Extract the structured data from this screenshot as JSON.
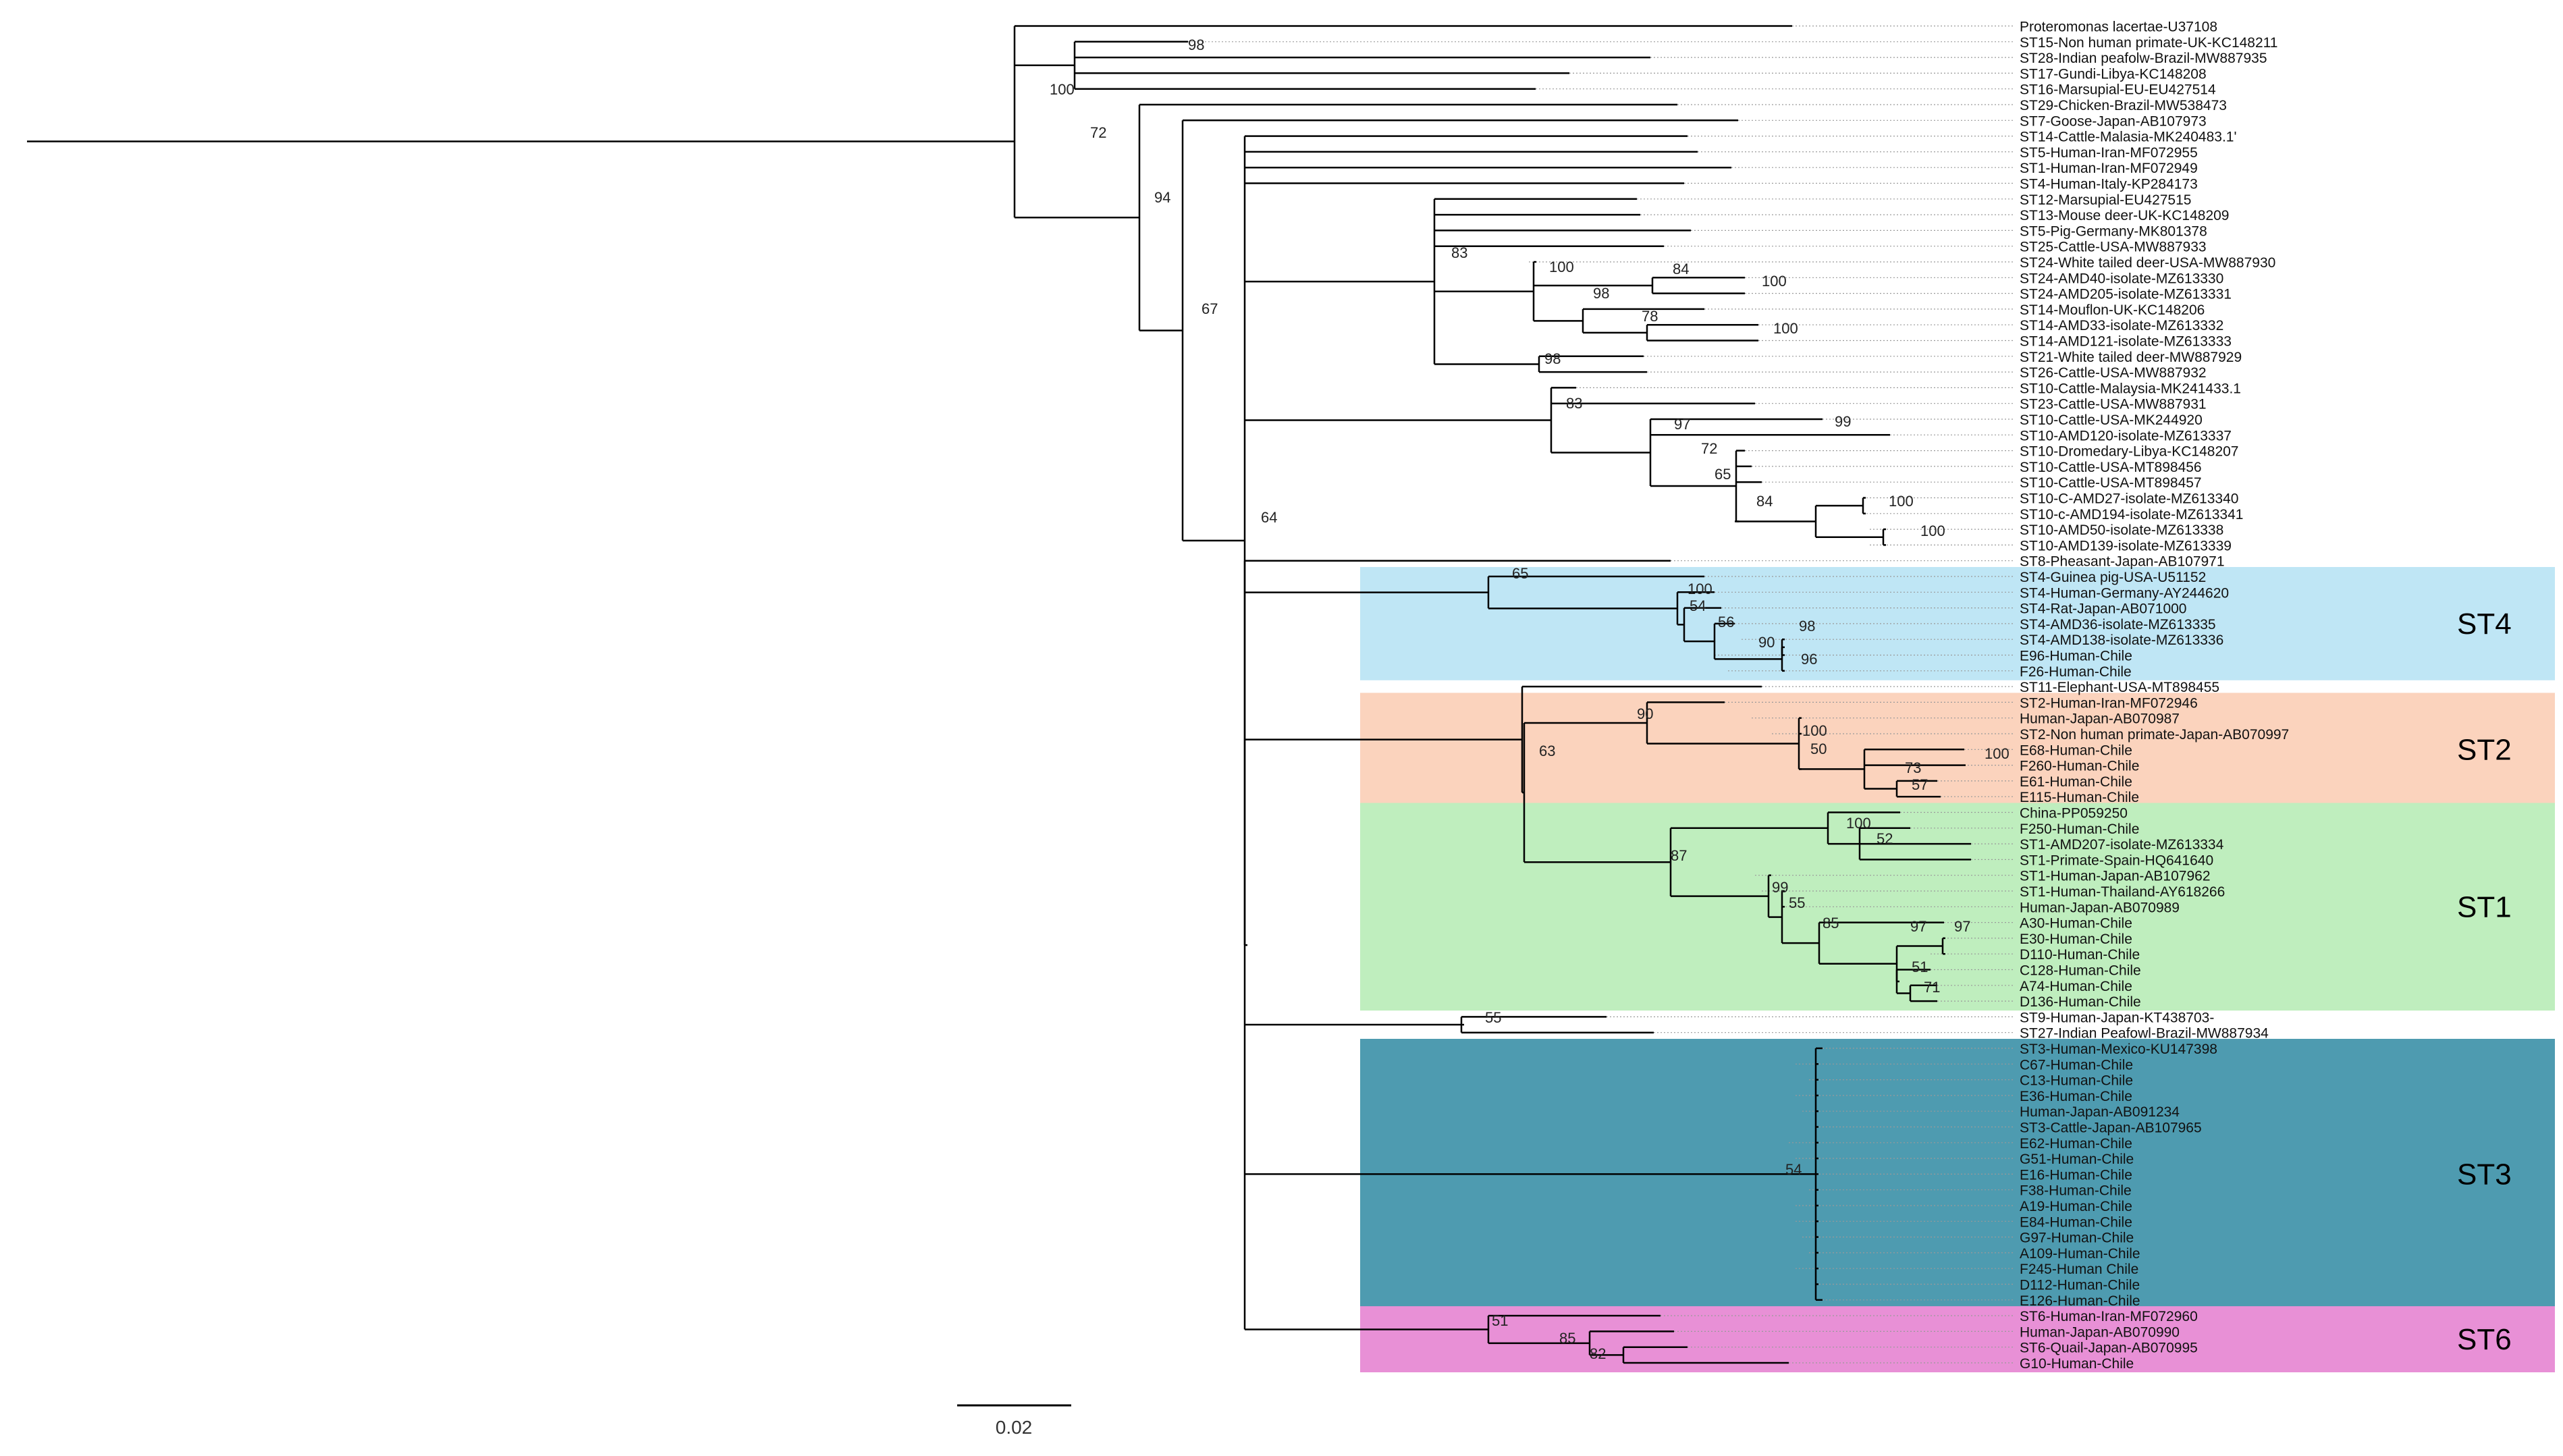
{
  "figure": {
    "scale_bar_label": "0.02",
    "branch_color": "#000000",
    "guide_color": "#9a9a9a"
  },
  "taxa": [
    "Proteromonas lacertae-U37108",
    "ST15-Non human primate-UK-KC148211",
    "ST28-Indian peafolw-Brazil-MW887935",
    "ST17-Gundi-Libya-KC148208",
    "ST16-Marsupial-EU-EU427514",
    "ST29-Chicken-Brazil-MW538473",
    "ST7-Goose-Japan-AB107973",
    "ST14-Cattle-Malasia-MK240483.1'",
    "ST5-Human-Iran-MF072955",
    "ST1-Human-Iran-MF072949",
    "ST4-Human-Italy-KP284173",
    "ST12-Marsupial-EU427515",
    "ST13-Mouse deer-UK-KC148209",
    "ST5-Pig-Germany-MK801378",
    "ST25-Cattle-USA-MW887933",
    "ST24-White tailed deer-USA-MW887930",
    "ST24-AMD40-isolate-MZ613330",
    "ST24-AMD205-isolate-MZ613331",
    "ST14-Mouflon-UK-KC148206",
    "ST14-AMD33-isolate-MZ613332",
    "ST14-AMD121-isolate-MZ613333",
    "ST21-White tailed deer-MW887929",
    "ST26-Cattle-USA-MW887932",
    "ST10-Cattle-Malaysia-MK241433.1",
    "ST23-Cattle-USA-MW887931",
    "ST10-Cattle-USA-MK244920",
    "ST10-AMD120-isolate-MZ613337",
    "ST10-Dromedary-Libya-KC148207",
    "ST10-Cattle-USA-MT898456",
    "ST10-Cattle-USA-MT898457",
    "ST10-C-AMD27-isolate-MZ613340",
    "ST10-c-AMD194-isolate-MZ613341",
    "ST10-AMD50-isolate-MZ613338",
    "ST10-AMD139-isolate-MZ613339",
    "ST8-Pheasant-Japan-AB107971",
    "ST4-Guinea pig-USA-U51152",
    "ST4-Human-Germany-AY244620",
    "ST4-Rat-Japan-AB071000",
    "ST4-AMD36-isolate-MZ613335",
    "ST4-AMD138-isolate-MZ613336",
    "E96-Human-Chile",
    "F26-Human-Chile",
    "ST11-Elephant-USA-MT898455",
    "ST2-Human-Iran-MF072946",
    "Human-Japan-AB070987",
    "ST2-Non human primate-Japan-AB070997",
    "E68-Human-Chile",
    "F260-Human-Chile",
    "E61-Human-Chile",
    "E115-Human-Chile",
    "China-PP059250",
    "F250-Human-Chile",
    "ST1-AMD207-isolate-MZ613334",
    "ST1-Primate-Spain-HQ641640",
    "ST1-Human-Japan-AB107962",
    "ST1-Human-Thailand-AY618266",
    "Human-Japan-AB070989",
    "A30-Human-Chile",
    "E30-Human-Chile",
    "D110-Human-Chile",
    "C128-Human-Chile",
    "A74-Human-Chile",
    "D136-Human-Chile",
    "ST9-Human-Japan-KT438703-",
    "ST27-Indian Peafowl-Brazil-MW887934",
    "ST3-Human-Mexico-KU147398",
    "C67-Human-Chile",
    "C13-Human-Chile",
    "E36-Human-Chile",
    "Human-Japan-AB091234",
    "ST3-Cattle-Japan-AB107965",
    "E62-Human-Chile",
    "G51-Human-Chile",
    "E16-Human-Chile",
    "F38-Human-Chile",
    "A19-Human-Chile",
    "E84-Human-Chile",
    "G97-Human-Chile",
    "A109-Human-Chile",
    "F245-Human Chile",
    "D112-Human-Chile",
    "E126-Human-Chile",
    "ST6-Human-Iran-MF072960",
    "Human-Japan-AB070990",
    "ST6-Quail-Japan-AB070995",
    "G10-Human-Chile"
  ],
  "clades": [
    {
      "name": "ST4",
      "color": "#bfe6f5"
    },
    {
      "name": "ST2",
      "color": "#fbd3bd"
    },
    {
      "name": "ST1",
      "color": "#bfeebe"
    },
    {
      "name": "ST3",
      "color": "#4e9bb0"
    },
    {
      "name": "ST6",
      "color": "#e890d6"
    }
  ],
  "bootstrap": [
    "98",
    "100",
    "72",
    "94",
    "67",
    "64",
    "83",
    "100",
    "84",
    "100",
    "98",
    "78",
    "100",
    "98",
    "83",
    "97",
    "72",
    "65",
    "84",
    "100",
    "100",
    "99",
    "65",
    "100",
    "54",
    "56",
    "90",
    "98",
    "96",
    "63",
    "90",
    "100",
    "50",
    "73",
    "100",
    "57",
    "87",
    "100",
    "52",
    "99",
    "55",
    "85",
    "97",
    "97",
    "51",
    "71",
    "55",
    "54",
    "51",
    "85",
    "82"
  ]
}
